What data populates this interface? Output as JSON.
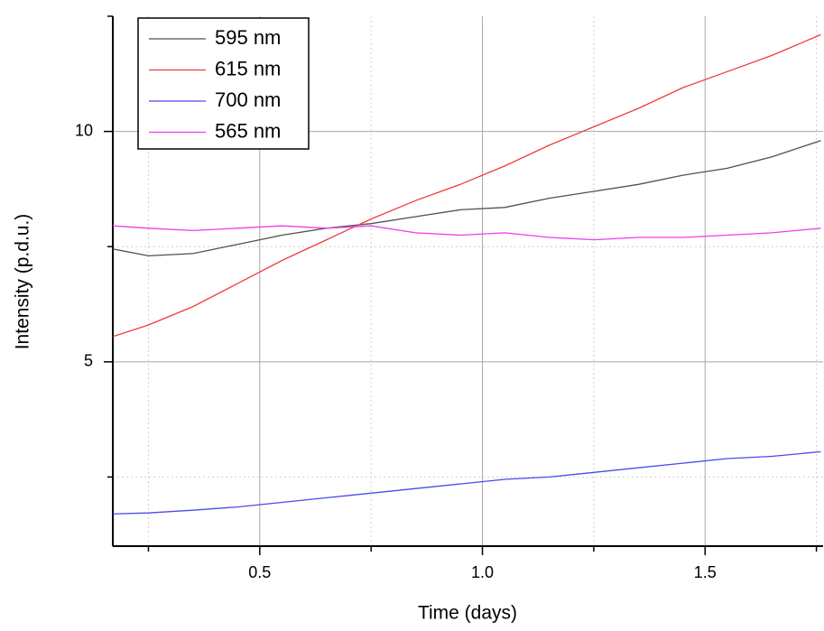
{
  "chart_data": {
    "type": "line",
    "x_label": "Time (days)",
    "y_label": "Intensity (p.d.u.)",
    "x": [
      0.17,
      0.25,
      0.35,
      0.45,
      0.55,
      0.65,
      0.75,
      0.85,
      0.95,
      1.05,
      1.15,
      1.25,
      1.35,
      1.45,
      1.55,
      1.65,
      1.76
    ],
    "series": [
      {
        "name": "595 nm",
        "color": "#505050",
        "values": [
          7.45,
          7.3,
          7.35,
          7.55,
          7.75,
          7.9,
          8.0,
          8.15,
          8.3,
          8.35,
          8.55,
          8.7,
          8.85,
          9.05,
          9.2,
          9.45,
          9.8
        ]
      },
      {
        "name": "615 nm",
        "color": "#f03c3c",
        "values": [
          5.55,
          5.8,
          6.2,
          6.7,
          7.2,
          7.65,
          8.1,
          8.5,
          8.85,
          9.25,
          9.7,
          10.1,
          10.5,
          10.95,
          11.3,
          11.65,
          12.1
        ]
      },
      {
        "name": "700 nm",
        "color": "#4a4aee",
        "values": [
          1.7,
          1.72,
          1.78,
          1.85,
          1.95,
          2.05,
          2.15,
          2.25,
          2.35,
          2.45,
          2.5,
          2.6,
          2.7,
          2.8,
          2.9,
          2.95,
          3.05
        ]
      },
      {
        "name": "565 nm",
        "color": "#ee3cee",
        "values": [
          7.95,
          7.9,
          7.85,
          7.9,
          7.95,
          7.9,
          7.95,
          7.8,
          7.75,
          7.8,
          7.7,
          7.65,
          7.7,
          7.7,
          7.75,
          7.8,
          7.9
        ]
      }
    ],
    "xlim": [
      0.17,
      1.765
    ],
    "ylim": [
      1,
      12.5
    ],
    "xticks": [
      {
        "value": 0.5,
        "label": "0.5"
      },
      {
        "value": 1,
        "label": "1.0"
      },
      {
        "value": 1.5,
        "label": "1.5"
      }
    ],
    "yticks": [
      5,
      10
    ],
    "xminorticks": [
      0.25,
      0.75,
      1.25,
      1.75
    ],
    "yminorticks": [
      2.5,
      7.5
    ],
    "grid": true,
    "legend": "upper-left"
  }
}
